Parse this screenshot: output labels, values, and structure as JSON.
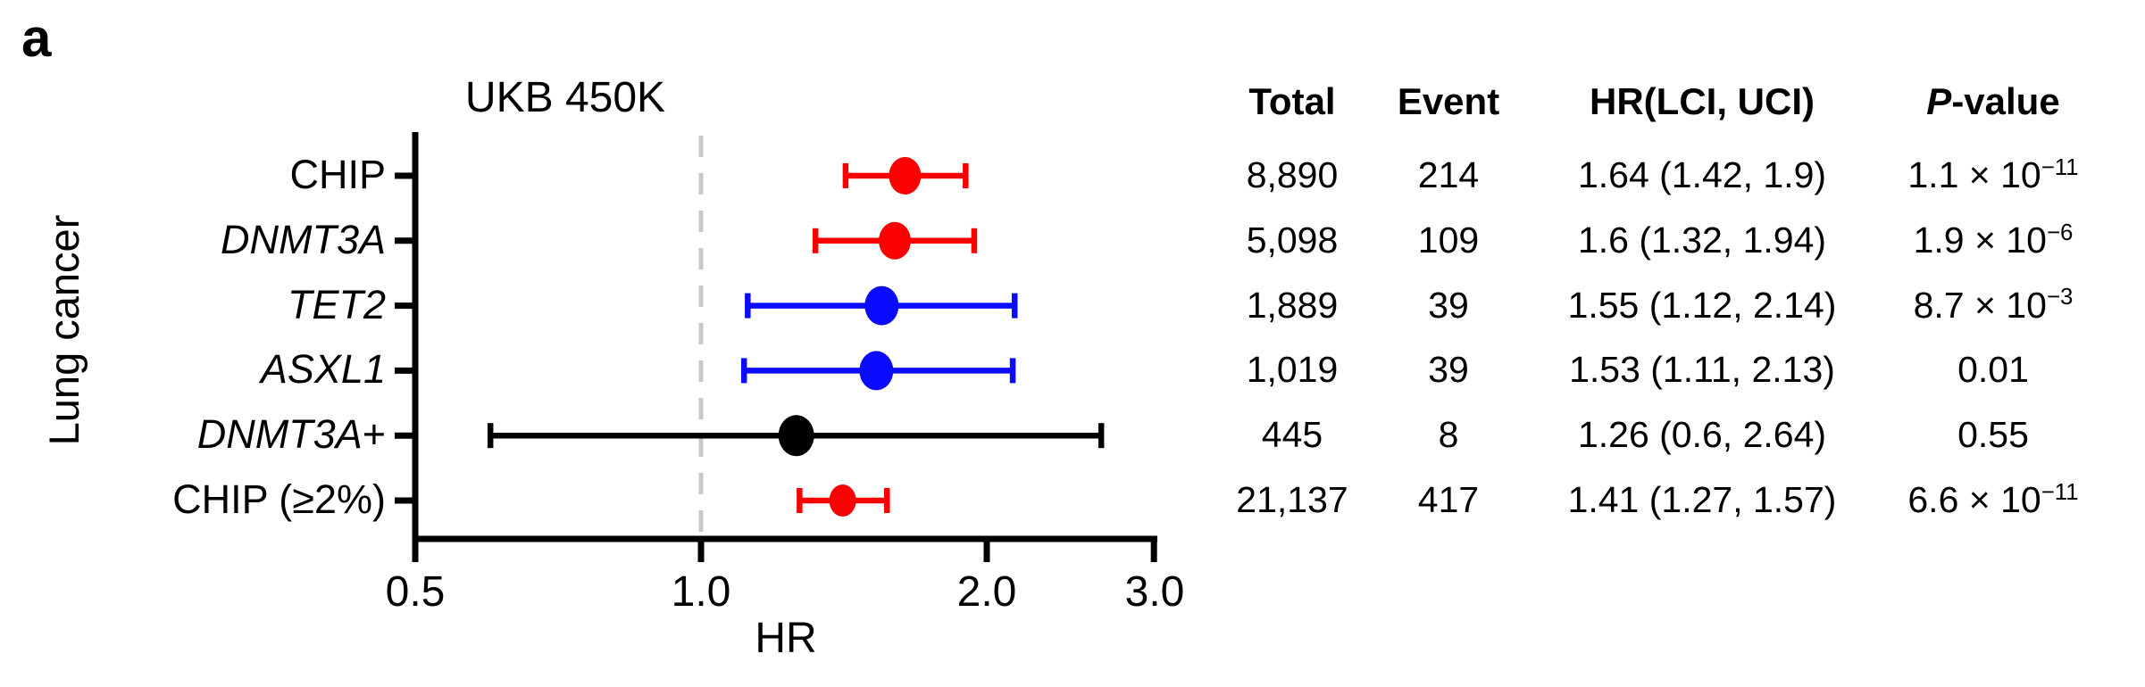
{
  "panel_label": "a",
  "chart_data": {
    "type": "forest",
    "title": "UKB 450K",
    "group_label": "Lung cancer",
    "xlabel": "HR",
    "x_scale": "log",
    "x_range": [
      0.5,
      3.0
    ],
    "reference_line": 1.0,
    "reference_line_color": "#c8c8c8",
    "x_ticks": [
      {
        "value": 0.5,
        "label": "0.5"
      },
      {
        "value": 1.0,
        "label": "1.0"
      },
      {
        "value": 2.0,
        "label": "2.0"
      },
      {
        "value": 3.0,
        "label": "3.0"
      }
    ],
    "colors": {
      "red": "#fb0000",
      "blue": "#0b0bff",
      "black": "#000000"
    },
    "table_headers": {
      "total": "Total",
      "event": "Event",
      "hr_ci": "HR(LCI, UCI)",
      "p_italic": "P",
      "p_rest": "-value"
    },
    "rows": [
      {
        "label": "CHIP",
        "suffix": "",
        "italic": false,
        "color": "#fb0000",
        "hr": 1.64,
        "lci": 1.42,
        "uci": 1.9,
        "marker_r": 18,
        "total": "8,890",
        "event": "214",
        "hr_ci": "1.64 (1.42, 1.9)",
        "p": {
          "text": "1.1 × 10",
          "sup": "−11"
        }
      },
      {
        "label": "DNMT3A",
        "suffix": "",
        "italic": true,
        "color": "#fb0000",
        "hr": 1.6,
        "lci": 1.32,
        "uci": 1.94,
        "marker_r": 18,
        "total": "5,098",
        "event": "109",
        "hr_ci": "1.6 (1.32, 1.94)",
        "p": {
          "text": "1.9 × 10",
          "sup": "−6"
        }
      },
      {
        "label": "TET2",
        "suffix": "",
        "italic": true,
        "color": "#0b0bff",
        "hr": 1.55,
        "lci": 1.12,
        "uci": 2.14,
        "marker_r": 19,
        "total": "1,889",
        "event": "39",
        "hr_ci": "1.55 (1.12, 2.14)",
        "p": {
          "text": "8.7 × 10",
          "sup": "−3"
        }
      },
      {
        "label": "ASXL1",
        "suffix": "",
        "italic": true,
        "color": "#0b0bff",
        "hr": 1.53,
        "lci": 1.11,
        "uci": 2.13,
        "marker_r": 19,
        "total": "1,019",
        "event": "39",
        "hr_ci": "1.53 (1.11, 2.13)",
        "p": {
          "text": "0.01",
          "sup": ""
        }
      },
      {
        "label": "DNMT3A",
        "suffix": "+",
        "italic": true,
        "color": "#000000",
        "hr": 1.26,
        "lci": 0.6,
        "uci": 2.64,
        "marker_r": 20,
        "total": "445",
        "event": "8",
        "hr_ci": "1.26 (0.6, 2.64)",
        "p": {
          "text": "0.55",
          "sup": ""
        }
      },
      {
        "label": "CHIP (≥2%)",
        "suffix": "",
        "italic": false,
        "color": "#fb0000",
        "hr": 1.41,
        "lci": 1.27,
        "uci": 1.57,
        "marker_r": 15,
        "total": "21,137",
        "event": "417",
        "hr_ci": "1.41 (1.27, 1.57)",
        "p": {
          "text": "6.6 × 10",
          "sup": "−11"
        }
      }
    ]
  }
}
